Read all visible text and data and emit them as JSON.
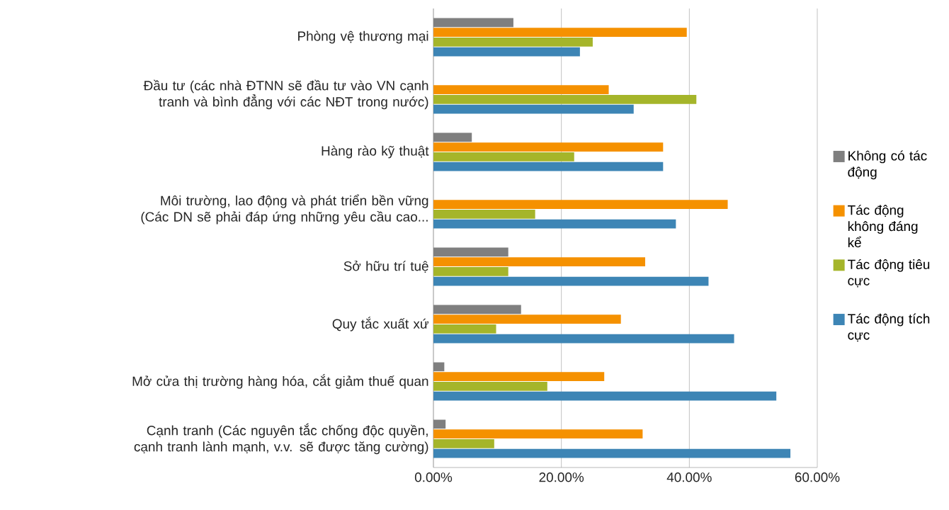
{
  "chart_data": {
    "type": "bar",
    "orientation": "horizontal",
    "categories": [
      "Phòng vệ thương mại",
      "Đầu tư (các nhà ĐTNN sẽ đầu tư vào VN cạnh tranh và bình đẳng với các NĐT trong nước)",
      "Hàng rào kỹ thuật",
      "Môi trường, lao động và phát triển bền vững (Các DN sẽ phải đáp ứng những yêu cầu cao...",
      "Sở hữu trí tuệ",
      "Quy tắc xuất xứ",
      "Mở cửa thị trường hàng hóa, cắt giảm thuế quan",
      "Cạnh tranh (Các nguyên tắc chống độc quyền, cạnh tranh lành mạnh, v.v. sẽ được tăng cường)"
    ],
    "series": [
      {
        "name": "Không có tác động",
        "color": "#7f7f7f",
        "values": [
          12.5,
          null,
          6,
          null,
          11.7,
          13.7,
          1.7,
          1.9
        ]
      },
      {
        "name": "Tác động không đáng kể",
        "color": "#f59100",
        "values": [
          39.6,
          27.4,
          35.9,
          46,
          33.1,
          29.3,
          26.7,
          32.7
        ]
      },
      {
        "name": "Tác động tiêu cực",
        "color": "#a5b52a",
        "values": [
          24.9,
          41.1,
          22,
          15.9,
          11.7,
          9.8,
          17.8,
          9.5
        ]
      },
      {
        "name": "Tác động tích cực",
        "color": "#3d85b5",
        "values": [
          22.9,
          31.3,
          35.9,
          37.9,
          43,
          47,
          53.6,
          55.8
        ]
      }
    ],
    "xlim": [
      0,
      60
    ],
    "xticks": [
      {
        "value": 0,
        "label": "0.00%"
      },
      {
        "value": 20,
        "label": "20.00%"
      },
      {
        "value": 40,
        "label": "40.00%"
      },
      {
        "value": 60,
        "label": "60.00%"
      }
    ],
    "grid": "x",
    "legend": "right"
  }
}
